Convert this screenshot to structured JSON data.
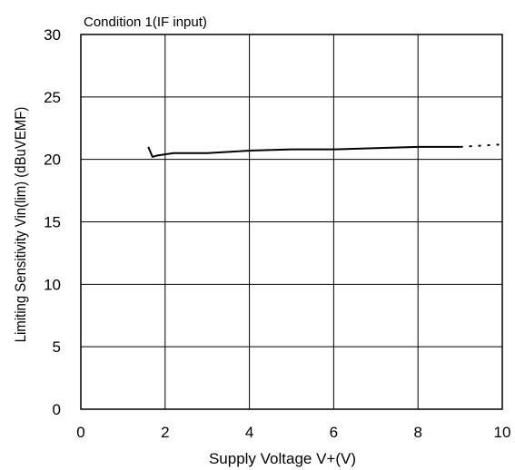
{
  "chart_data": {
    "type": "line",
    "title": "",
    "annotation": "Condition 1(IF input)",
    "xlabel": "Supply Voltage V+(V)",
    "ylabel": "Limiting Sensitivity Vin(lim) (dBuVEMF)",
    "xlim": [
      0,
      10
    ],
    "ylim": [
      0,
      30
    ],
    "xticks": [
      0,
      2,
      4,
      6,
      8,
      10
    ],
    "yticks": [
      0,
      5,
      10,
      15,
      20,
      25,
      30
    ],
    "grid": true,
    "series": [
      {
        "style": "solid",
        "color": "#000000",
        "x": [
          1.6,
          1.65,
          1.7,
          1.8,
          2.0,
          2.2,
          2.5,
          3.0,
          3.5,
          4.0,
          5.0,
          6.0,
          7.0,
          8.0,
          9.0
        ],
        "y": [
          21.0,
          20.6,
          20.2,
          20.3,
          20.4,
          20.5,
          20.5,
          20.5,
          20.6,
          20.7,
          20.8,
          20.8,
          20.9,
          21.0,
          21.0
        ]
      },
      {
        "style": "dotted",
        "color": "#000000",
        "x": [
          9.0,
          9.5,
          10.0
        ],
        "y": [
          21.0,
          21.1,
          21.2
        ]
      }
    ]
  }
}
